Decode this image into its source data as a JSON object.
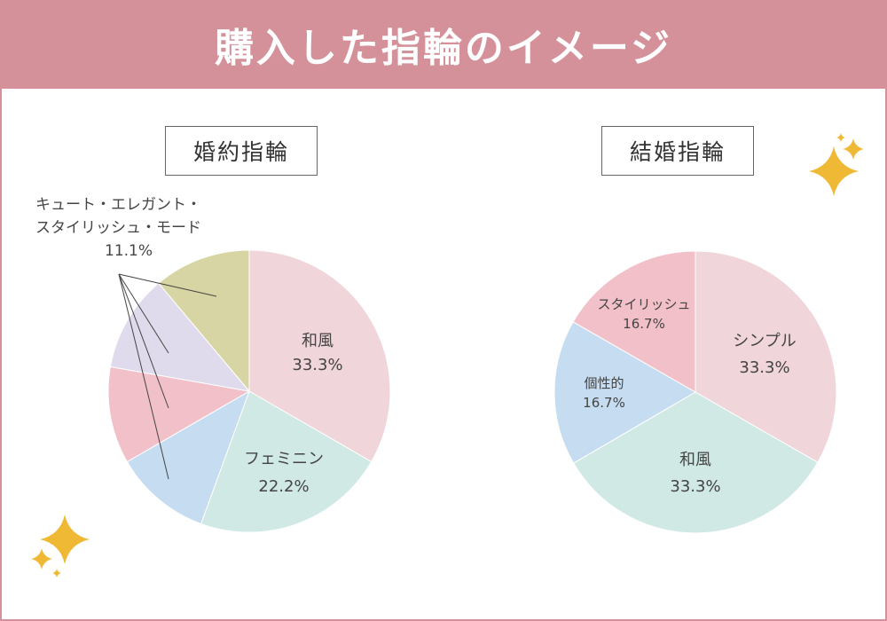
{
  "title": "購入した指輪のイメージ",
  "colors": {
    "header": "#d4919a",
    "sparkle": "#f0b935"
  },
  "chart_data": [
    {
      "type": "pie",
      "title": "婚約指輪",
      "start": "top",
      "direction": "clockwise",
      "slices": [
        {
          "label": "和風",
          "value": 33.3,
          "value_label": "33.3%",
          "color": "#f0d5da"
        },
        {
          "label": "フェミニン",
          "value": 22.2,
          "value_label": "22.2%",
          "color": "#d0e9e5"
        },
        {
          "label": "キュート",
          "value": 11.1,
          "color": "#c5dcf1"
        },
        {
          "label": "エレガント",
          "value": 11.1,
          "color": "#f2c0c8"
        },
        {
          "label": "スタイリッシュ",
          "value": 11.1,
          "color": "#e0dbec"
        },
        {
          "label": "モード",
          "value": 11.1,
          "color": "#d8d5a4"
        }
      ],
      "group_label": {
        "line1": "キュート・エレガント・",
        "line2": "スタイリッシュ・モード",
        "value": "11.1%"
      }
    },
    {
      "type": "pie",
      "title": "結婚指輪",
      "start": "top",
      "direction": "clockwise",
      "slices": [
        {
          "label": "シンプル",
          "value": 33.3,
          "value_label": "33.3%",
          "color": "#f0d5da"
        },
        {
          "label": "和風",
          "value": 33.3,
          "value_label": "33.3%",
          "color": "#d0e9e5"
        },
        {
          "label": "個性的",
          "value": 16.7,
          "value_label": "16.7%",
          "color": "#c5dcf1"
        },
        {
          "label": "スタイリッシュ",
          "value": 16.7,
          "value_label": "16.7%",
          "color": "#f2c0c8"
        }
      ]
    }
  ]
}
